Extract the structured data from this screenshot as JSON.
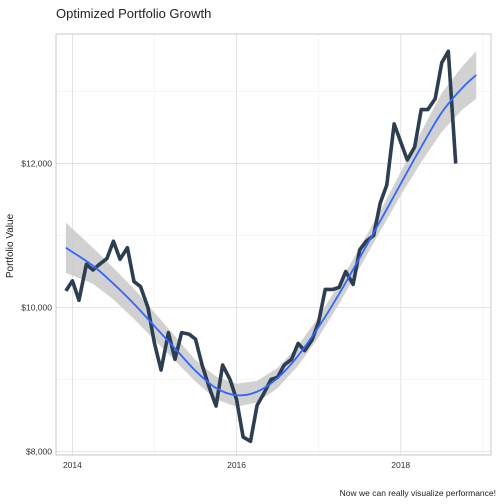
{
  "chart_data": {
    "type": "line",
    "title": "Optimized Portfolio Growth",
    "xlabel": "",
    "ylabel": "Portfolio Value",
    "caption": "Now we can really visualize performance!",
    "xlim": [
      2013.8,
      2019.1
    ],
    "ylim": [
      7950,
      13800
    ],
    "x_ticks": [
      2014,
      2016,
      2018
    ],
    "x_tick_labels": [
      "2014",
      "2016",
      "2018"
    ],
    "y_ticks": [
      8000,
      10000,
      12000
    ],
    "y_tick_labels": [
      "$8,000",
      "$10,000",
      "$12,000"
    ],
    "grid": true,
    "colors": {
      "line": "#2c3e50",
      "smooth": "#3366ff",
      "band": "#cccccc"
    },
    "series": [
      {
        "type": "line",
        "x": [
          2013.92,
          2014.0,
          2014.08,
          2014.17,
          2014.25,
          2014.33,
          2014.42,
          2014.5,
          2014.58,
          2014.67,
          2014.75,
          2014.83,
          2014.92,
          2015.0,
          2015.08,
          2015.17,
          2015.25,
          2015.33,
          2015.42,
          2015.5,
          2015.58,
          2015.67,
          2015.75,
          2015.83,
          2015.92,
          2016.0,
          2016.08,
          2016.17,
          2016.25,
          2016.33,
          2016.42,
          2016.5,
          2016.58,
          2016.67,
          2016.75,
          2016.83,
          2016.92,
          2017.0,
          2017.08,
          2017.17,
          2017.25,
          2017.33,
          2017.42,
          2017.5,
          2017.58,
          2017.67,
          2017.75,
          2017.83,
          2017.92,
          2018.0,
          2018.08,
          2018.17,
          2018.25,
          2018.33,
          2018.42,
          2018.5,
          2018.58,
          2018.67,
          2018.75,
          2018.83,
          2018.92
        ],
        "y": [
          10230,
          10370,
          10100,
          10600,
          10520,
          10600,
          10680,
          10920,
          10670,
          10830,
          10360,
          10290,
          10000,
          9500,
          9130,
          9650,
          9280,
          9650,
          9630,
          9560,
          9200,
          8880,
          8630,
          9200,
          9000,
          8720,
          8200,
          8140,
          8640,
          8800,
          9000,
          9030,
          9200,
          9280,
          9500,
          9400,
          9550,
          9800,
          10250,
          10250,
          10280,
          10500,
          10320,
          10800,
          10920,
          11000,
          11450,
          11700,
          12550,
          12300,
          12050,
          12230,
          12750,
          12750,
          12900,
          13400,
          13560,
          12000,
          12000,
          12000,
          12000
        ]
      },
      {
        "type": "smooth",
        "x": [
          2013.92,
          2014.25,
          2014.5,
          2014.75,
          2015.0,
          2015.25,
          2015.5,
          2015.75,
          2016.0,
          2016.25,
          2016.5,
          2016.75,
          2017.0,
          2017.25,
          2017.5,
          2017.75,
          2018.0,
          2018.25,
          2018.5,
          2018.75,
          2018.92
        ],
        "y": [
          10830,
          10580,
          10330,
          10050,
          9740,
          9430,
          9120,
          8880,
          8780,
          8830,
          9020,
          9330,
          9730,
          10190,
          10690,
          11200,
          11720,
          12230,
          12710,
          13050,
          13230
        ],
        "lower": [
          10480,
          10330,
          10110,
          9840,
          9550,
          9260,
          8970,
          8720,
          8620,
          8680,
          8880,
          9190,
          9590,
          10050,
          10550,
          11060,
          11560,
          12020,
          12440,
          12750,
          12900
        ],
        "upper": [
          11180,
          10830,
          10550,
          10260,
          9930,
          9600,
          9270,
          9040,
          8940,
          8980,
          9160,
          9470,
          9870,
          10330,
          10830,
          11340,
          11880,
          12440,
          12980,
          13350,
          13560
        ]
      }
    ]
  }
}
